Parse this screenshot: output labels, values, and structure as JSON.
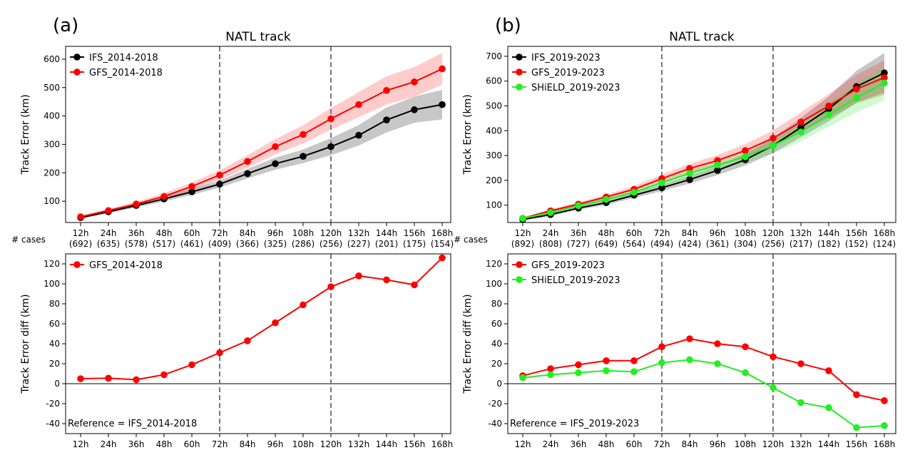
{
  "panel_labels": [
    "(a)",
    "(b)"
  ],
  "cases_label": "# cases",
  "colors": {
    "IFS": "#000000",
    "GFS": "#ff0000",
    "SHiELD": "#22ee22",
    "vline": "#777777"
  },
  "chart_data": [
    {
      "type": "line",
      "panel": "(a)",
      "title": "NATL track",
      "ylabel": "Track Error (km)",
      "categories": [
        "12h",
        "24h",
        "36h",
        "48h",
        "60h",
        "72h",
        "84h",
        "96h",
        "108h",
        "120h",
        "132h",
        "144h",
        "156h",
        "168h"
      ],
      "case_counts": [
        "(692)",
        "(635)",
        "(578)",
        "(517)",
        "(461)",
        "(409)",
        "(366)",
        "(325)",
        "(286)",
        "(256)",
        "(227)",
        "(201)",
        "(175)",
        "(154)"
      ],
      "ylim": [
        25,
        645
      ],
      "yticks": [
        100,
        200,
        300,
        400,
        500,
        600
      ],
      "vlines": [
        "72h",
        "120h"
      ],
      "legend_position": "upper-left",
      "series": [
        {
          "name": "IFS_2014-2018",
          "key": "IFS",
          "values": [
            42,
            63,
            85,
            108,
            133,
            160,
            197,
            232,
            258,
            292,
            332,
            386,
            422,
            440
          ],
          "lower": [
            38,
            57,
            78,
            99,
            122,
            148,
            180,
            211,
            234,
            262,
            296,
            342,
            376,
            388
          ],
          "upper": [
            46,
            69,
            92,
            117,
            144,
            172,
            214,
            253,
            282,
            322,
            368,
            430,
            468,
            492
          ]
        },
        {
          "name": "GFS_2014-2018",
          "key": "GFS",
          "values": [
            45,
            67,
            90,
            117,
            152,
            192,
            240,
            292,
            335,
            390,
            440,
            490,
            520,
            566
          ],
          "lower": [
            41,
            61,
            82,
            106,
            138,
            175,
            218,
            265,
            303,
            352,
            396,
            440,
            468,
            510
          ],
          "upper": [
            49,
            73,
            98,
            128,
            166,
            209,
            262,
            319,
            367,
            428,
            484,
            540,
            572,
            622
          ]
        }
      ]
    },
    {
      "type": "line",
      "panel": "(b)",
      "title": "NATL track",
      "ylabel": "Track Error (km)",
      "categories": [
        "12h",
        "24h",
        "36h",
        "48h",
        "60h",
        "72h",
        "84h",
        "96h",
        "108h",
        "120h",
        "132h",
        "144h",
        "156h",
        "168h"
      ],
      "case_counts": [
        "(892)",
        "(808)",
        "(727)",
        "(649)",
        "(564)",
        "(494)",
        "(424)",
        "(361)",
        "(304)",
        "(256)",
        "(217)",
        "(182)",
        "(152)",
        "(124)"
      ],
      "ylim": [
        30,
        740
      ],
      "yticks": [
        100,
        200,
        300,
        400,
        500,
        600,
        700
      ],
      "vlines": [
        "72h",
        "120h"
      ],
      "legend_position": "upper-left",
      "series": [
        {
          "name": "IFS_2019-2023",
          "key": "IFS",
          "values": [
            42,
            62,
            88,
            110,
            140,
            170,
            203,
            240,
            283,
            340,
            413,
            488,
            578,
            633
          ],
          "lower": [
            38,
            57,
            81,
            101,
            129,
            157,
            187,
            221,
            260,
            310,
            374,
            438,
            514,
            553
          ],
          "upper": [
            46,
            67,
            95,
            119,
            151,
            183,
            219,
            259,
            306,
            370,
            452,
            538,
            642,
            713
          ]
        },
        {
          "name": "GFS_2019-2023",
          "key": "GFS",
          "values": [
            47,
            77,
            104,
            133,
            164,
            207,
            248,
            280,
            320,
            370,
            435,
            500,
            568,
            614
          ],
          "lower": [
            43,
            71,
            96,
            123,
            151,
            191,
            229,
            258,
            294,
            338,
            396,
            452,
            510,
            544
          ],
          "upper": [
            51,
            83,
            112,
            143,
            177,
            223,
            267,
            302,
            346,
            402,
            474,
            548,
            626,
            684
          ]
        },
        {
          "name": "SHiELD_2019-2023",
          "key": "SHiELD",
          "values": [
            47,
            70,
            98,
            123,
            152,
            190,
            228,
            262,
            295,
            340,
            395,
            464,
            533,
            592
          ],
          "lower": [
            43,
            64,
            90,
            113,
            140,
            175,
            210,
            240,
            270,
            309,
            357,
            417,
            475,
            522
          ],
          "upper": [
            51,
            76,
            106,
            133,
            164,
            205,
            246,
            284,
            320,
            371,
            433,
            511,
            591,
            662
          ]
        }
      ]
    },
    {
      "type": "line",
      "panel": "(a)",
      "title": "",
      "ylabel": "Track Error diff (km)",
      "categories": [
        "12h",
        "24h",
        "36h",
        "48h",
        "60h",
        "72h",
        "84h",
        "96h",
        "108h",
        "120h",
        "132h",
        "144h",
        "156h",
        "168h"
      ],
      "ylim": [
        -50,
        130
      ],
      "yticks": [
        -40,
        -20,
        0,
        20,
        40,
        60,
        80,
        100,
        120
      ],
      "vlines": [
        "72h",
        "120h"
      ],
      "zero_line": true,
      "legend_position": "upper-left",
      "annotation": "Reference = IFS_2014-2018",
      "series": [
        {
          "name": "GFS_2014-2018",
          "key": "GFS",
          "values": [
            5,
            5.5,
            4,
            9,
            19,
            31,
            43,
            61,
            79,
            97,
            108,
            104,
            99,
            126
          ]
        }
      ]
    },
    {
      "type": "line",
      "panel": "(b)",
      "title": "",
      "ylabel": "Track Error diff (km)",
      "categories": [
        "12h",
        "24h",
        "36h",
        "48h",
        "60h",
        "72h",
        "84h",
        "96h",
        "108h",
        "120h",
        "132h",
        "144h",
        "156h",
        "168h"
      ],
      "ylim": [
        -50,
        130
      ],
      "yticks": [
        -40,
        -20,
        0,
        20,
        40,
        60,
        80,
        100,
        120
      ],
      "vlines": [
        "72h",
        "120h"
      ],
      "zero_line": true,
      "legend_position": "upper-left",
      "annotation": "Reference = IFS_2019-2023",
      "series": [
        {
          "name": "GFS_2019-2023",
          "key": "GFS",
          "values": [
            8,
            15,
            19,
            23,
            23,
            37,
            45,
            40,
            37,
            27,
            20,
            13,
            -11,
            -17
          ]
        },
        {
          "name": "SHiELD_2019-2023",
          "key": "SHiELD",
          "values": [
            6,
            9,
            11,
            13,
            12,
            21,
            24,
            20,
            11,
            -4,
            -19,
            -24,
            -44,
            -42
          ]
        }
      ]
    }
  ]
}
